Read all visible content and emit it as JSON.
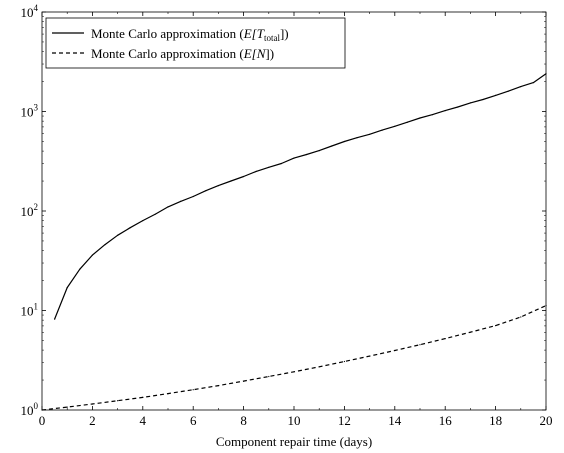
{
  "chart_data": {
    "type": "line",
    "title": "",
    "xlabel": "Component repair time (days)",
    "ylabel": "",
    "xlim": [
      0,
      20
    ],
    "ylim": [
      1,
      10000
    ],
    "yscale": "log",
    "grid": false,
    "legend_position": "top-left",
    "x_ticks": [
      0,
      2,
      4,
      6,
      8,
      10,
      12,
      14,
      16,
      18,
      20
    ],
    "x_tick_labels": [
      "0",
      "2",
      "4",
      "6",
      "8",
      "10",
      "12",
      "14",
      "16",
      "18",
      "20"
    ],
    "y_ticks": [
      1,
      10,
      100,
      1000,
      10000
    ],
    "y_tick_labels": [
      {
        "base": "10",
        "exp": "0"
      },
      {
        "base": "10",
        "exp": "1"
      },
      {
        "base": "10",
        "exp": "2"
      },
      {
        "base": "10",
        "exp": "3"
      },
      {
        "base": "10",
        "exp": "4"
      }
    ],
    "series": [
      {
        "name": "Monte Carlo approximation (E[T_total])",
        "legend": {
          "prefix": "Monte Carlo approximation (",
          "math": "E[T",
          "sub": "total",
          "suffix": "])"
        },
        "style": "solid",
        "color": "#000000",
        "x": [
          0.5,
          1,
          1.5,
          2,
          2.5,
          3,
          3.5,
          4,
          4.5,
          5,
          5.5,
          6,
          6.5,
          7,
          7.5,
          8,
          8.5,
          9,
          9.5,
          10,
          10.5,
          11,
          11.5,
          12,
          12.5,
          13,
          13.5,
          14,
          14.5,
          15,
          15.5,
          16,
          16.5,
          17,
          17.5,
          18,
          18.5,
          19,
          19.5,
          20
        ],
        "values": [
          8.2,
          17,
          26,
          36,
          46,
          57,
          68,
          80,
          93,
          110,
          125,
          140,
          160,
          180,
          200,
          222,
          250,
          275,
          300,
          340,
          370,
          405,
          450,
          500,
          545,
          590,
          650,
          710,
          780,
          860,
          930,
          1020,
          1110,
          1220,
          1320,
          1450,
          1600,
          1780,
          1950,
          2400
        ]
      },
      {
        "name": "Monte Carlo approximation (E[N])",
        "legend": {
          "prefix": "Monte Carlo approximation (",
          "math": "E[N",
          "sub": "",
          "suffix": "])"
        },
        "style": "dashed",
        "color": "#000000",
        "x": [
          0,
          1,
          2,
          3,
          4,
          5,
          6,
          7,
          8,
          9,
          10,
          11,
          12,
          13,
          14,
          15,
          16,
          17,
          18,
          19,
          20
        ],
        "values": [
          1.0,
          1.07,
          1.15,
          1.24,
          1.34,
          1.46,
          1.6,
          1.76,
          1.95,
          2.17,
          2.42,
          2.72,
          3.07,
          3.48,
          3.96,
          4.53,
          5.22,
          6.05,
          7.05,
          8.6,
          11.2
        ]
      }
    ]
  }
}
